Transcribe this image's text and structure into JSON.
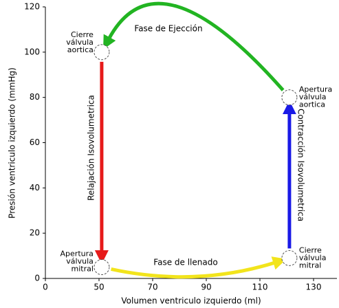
{
  "chart_data": {
    "type": "pv-loop",
    "x_label": "Volumen ventriculo izquierdo (ml)",
    "y_label": "Presión ventriculo izquierdo (mmHg)",
    "x": [
      51,
      121,
      121,
      51
    ],
    "values": [
      5,
      9,
      80,
      100
    ],
    "point_labels": [
      [
        "Apertura",
        "válvula",
        "mitral"
      ],
      [
        "Cierre",
        "válvula",
        "mitral"
      ],
      [
        "Apertura",
        "válvula",
        "aortica"
      ],
      [
        "Cierre",
        "válvula",
        "aortica"
      ]
    ],
    "phases": [
      {
        "name": "Fase de llenado",
        "color": "#f2e41c"
      },
      {
        "name": "Contracción Isovolumetrica",
        "color": "#1a1ae6"
      },
      {
        "name": "Fase de Ejección",
        "color": "#22b422"
      },
      {
        "name": "Relajación Isovolumetrica",
        "color": "#e61a1a"
      }
    ],
    "xticks": [
      0,
      50,
      70,
      90,
      110,
      130
    ],
    "ylim": [
      0,
      120
    ],
    "yticks": [
      0,
      20,
      40,
      60,
      80,
      100,
      120
    ]
  }
}
